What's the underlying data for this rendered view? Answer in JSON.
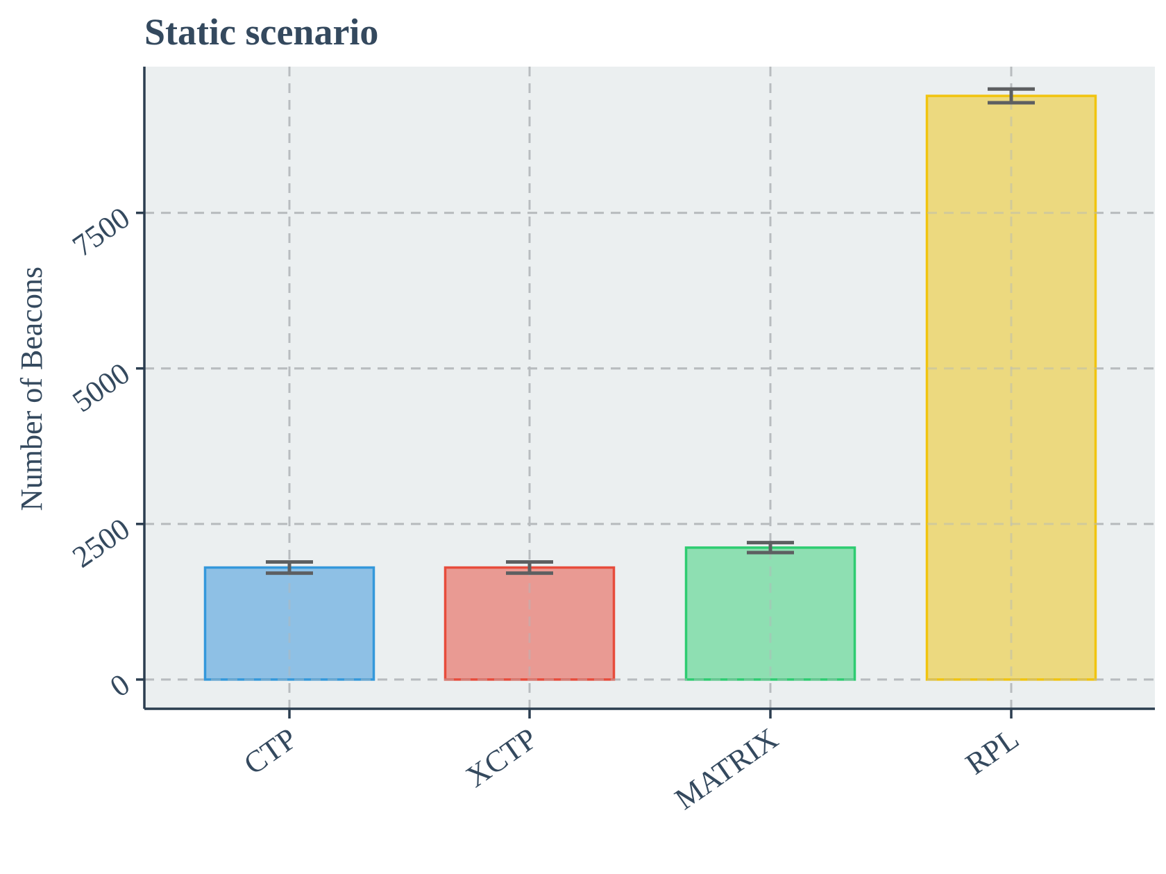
{
  "chart_data": {
    "type": "bar",
    "title": "Static scenario",
    "xlabel": "",
    "ylabel": "Number of Beacons",
    "categories": [
      "CTP",
      "XCTP",
      "MATRIX",
      "RPL"
    ],
    "values": [
      1800,
      1800,
      2120,
      9380
    ],
    "error": [
      90,
      90,
      80,
      110
    ],
    "ylim": [
      -470,
      9850
    ],
    "yticks": [
      0,
      2500,
      5000,
      7500
    ],
    "ytick_labels": [
      "0",
      "2500",
      "5000",
      "7500"
    ],
    "grid": true,
    "legend": "none",
    "colors": {
      "fills": [
        "#85bce4",
        "#e8938b",
        "#86ddac",
        "#ecd775"
      ],
      "strokes": [
        "#3498db",
        "#e74c3c",
        "#2ecc71",
        "#f1c40f"
      ],
      "background": "#ebeff0",
      "text": "#34495e",
      "error_bars": "#5d5f61"
    }
  }
}
